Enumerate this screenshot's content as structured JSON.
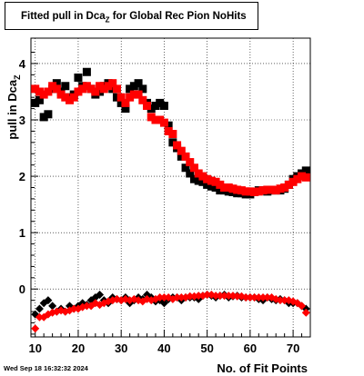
{
  "chart_data": {
    "type": "scatter",
    "title": {
      "main": "Fitted pull in Dca",
      "sub": "Z",
      "rest": " for Global Rec Pion NoHits"
    },
    "xlabel": "No. of Fit Points",
    "ylabel": {
      "main": "pull in Dca",
      "sub": "Z"
    },
    "xlim": [
      9,
      74
    ],
    "ylim": [
      -0.85,
      4.45
    ],
    "xticks": [
      10,
      20,
      30,
      40,
      50,
      60,
      70
    ],
    "yticks": [
      0,
      1,
      2,
      3,
      4
    ],
    "grid": true,
    "series": [
      {
        "color": "#000000",
        "points": [
          [
            10,
            3.3
          ],
          [
            11,
            3.35
          ],
          [
            12,
            3.05
          ],
          [
            13,
            3.1
          ],
          [
            14,
            3.55
          ],
          [
            15,
            3.65
          ],
          [
            16,
            3.5
          ],
          [
            17,
            3.6
          ],
          [
            18,
            3.4
          ],
          [
            19,
            3.45
          ],
          [
            20,
            3.75
          ],
          [
            21,
            3.6
          ],
          [
            22,
            3.85
          ],
          [
            23,
            3.55
          ],
          [
            24,
            3.45
          ],
          [
            25,
            3.5
          ],
          [
            26,
            3.6
          ],
          [
            27,
            3.65
          ],
          [
            28,
            3.55
          ],
          [
            29,
            3.4
          ],
          [
            30,
            3.3
          ],
          [
            31,
            3.2
          ],
          [
            32,
            3.55
          ],
          [
            33,
            3.6
          ],
          [
            34,
            3.65
          ],
          [
            35,
            3.55
          ],
          [
            36,
            3.3
          ],
          [
            37,
            3.2
          ],
          [
            38,
            3.25
          ],
          [
            39,
            3.3
          ],
          [
            40,
            3.25
          ],
          [
            41,
            2.9
          ],
          [
            42,
            2.6
          ],
          [
            43,
            2.5
          ],
          [
            44,
            2.35
          ],
          [
            45,
            2.15
          ],
          [
            46,
            2.05
          ],
          [
            47,
            1.95
          ],
          [
            48,
            1.92
          ],
          [
            49,
            1.9
          ],
          [
            50,
            1.85
          ],
          [
            51,
            1.82
          ],
          [
            52,
            1.8
          ],
          [
            53,
            1.75
          ],
          [
            54,
            1.75
          ],
          [
            55,
            1.73
          ],
          [
            56,
            1.72
          ],
          [
            57,
            1.7
          ],
          [
            58,
            1.7
          ],
          [
            59,
            1.68
          ],
          [
            60,
            1.68
          ],
          [
            61,
            1.72
          ],
          [
            62,
            1.75
          ],
          [
            63,
            1.75
          ],
          [
            64,
            1.73
          ],
          [
            65,
            1.75
          ],
          [
            66,
            1.75
          ],
          [
            67,
            1.75
          ],
          [
            68,
            1.78
          ],
          [
            69,
            1.85
          ],
          [
            70,
            1.95
          ],
          [
            71,
            2.0
          ],
          [
            72,
            2.05
          ],
          [
            73,
            2.1
          ],
          [
            10,
            -0.45
          ],
          [
            11,
            -0.35
          ],
          [
            12,
            -0.25
          ],
          [
            13,
            -0.2
          ],
          [
            14,
            -0.3
          ],
          [
            15,
            -0.4
          ],
          [
            16,
            -0.35
          ],
          [
            17,
            -0.4
          ],
          [
            18,
            -0.3
          ],
          [
            19,
            -0.35
          ],
          [
            20,
            -0.3
          ],
          [
            21,
            -0.25
          ],
          [
            22,
            -0.28
          ],
          [
            23,
            -0.2
          ],
          [
            24,
            -0.15
          ],
          [
            25,
            -0.1
          ],
          [
            26,
            -0.2
          ],
          [
            27,
            -0.25
          ],
          [
            28,
            -0.15
          ],
          [
            29,
            -0.18
          ],
          [
            30,
            -0.2
          ],
          [
            31,
            -0.15
          ],
          [
            32,
            -0.25
          ],
          [
            33,
            -0.2
          ],
          [
            34,
            -0.15
          ],
          [
            35,
            -0.18
          ],
          [
            36,
            -0.1
          ],
          [
            37,
            -0.15
          ],
          [
            38,
            -0.22
          ],
          [
            39,
            -0.2
          ],
          [
            40,
            -0.25
          ],
          [
            41,
            -0.18
          ],
          [
            42,
            -0.15
          ],
          [
            43,
            -0.15
          ],
          [
            44,
            -0.2
          ],
          [
            45,
            -0.15
          ],
          [
            46,
            -0.15
          ],
          [
            47,
            -0.15
          ],
          [
            48,
            -0.18
          ],
          [
            49,
            -0.12
          ],
          [
            50,
            -0.1
          ],
          [
            51,
            -0.12
          ],
          [
            52,
            -0.15
          ],
          [
            53,
            -0.12
          ],
          [
            54,
            -0.1
          ],
          [
            55,
            -0.15
          ],
          [
            56,
            -0.13
          ],
          [
            57,
            -0.12
          ],
          [
            58,
            -0.15
          ],
          [
            59,
            -0.15
          ],
          [
            60,
            -0.15
          ],
          [
            61,
            -0.15
          ],
          [
            62,
            -0.18
          ],
          [
            63,
            -0.2
          ],
          [
            64,
            -0.15
          ],
          [
            65,
            -0.18
          ],
          [
            66,
            -0.2
          ],
          [
            67,
            -0.18
          ],
          [
            68,
            -0.2
          ],
          [
            69,
            -0.25
          ],
          [
            70,
            -0.25
          ],
          [
            71,
            -0.25
          ],
          [
            72,
            -0.3
          ],
          [
            73,
            -0.35
          ]
        ]
      },
      {
        "color": "#ff0000",
        "points": [
          [
            10,
            3.55
          ],
          [
            11,
            3.5
          ],
          [
            12,
            3.45
          ],
          [
            13,
            3.5
          ],
          [
            14,
            3.6
          ],
          [
            15,
            3.55
          ],
          [
            16,
            3.45
          ],
          [
            17,
            3.4
          ],
          [
            18,
            3.35
          ],
          [
            19,
            3.4
          ],
          [
            20,
            3.5
          ],
          [
            21,
            3.55
          ],
          [
            22,
            3.6
          ],
          [
            23,
            3.55
          ],
          [
            24,
            3.5
          ],
          [
            25,
            3.6
          ],
          [
            26,
            3.55
          ],
          [
            27,
            3.6
          ],
          [
            28,
            3.65
          ],
          [
            29,
            3.55
          ],
          [
            30,
            3.4
          ],
          [
            31,
            3.3
          ],
          [
            32,
            3.4
          ],
          [
            33,
            3.45
          ],
          [
            34,
            3.45
          ],
          [
            35,
            3.35
          ],
          [
            36,
            3.25
          ],
          [
            37,
            3.05
          ],
          [
            38,
            3.0
          ],
          [
            39,
            3.0
          ],
          [
            40,
            2.95
          ],
          [
            41,
            2.8
          ],
          [
            42,
            2.75
          ],
          [
            43,
            2.55
          ],
          [
            44,
            2.45
          ],
          [
            45,
            2.35
          ],
          [
            46,
            2.25
          ],
          [
            47,
            2.15
          ],
          [
            48,
            2.05
          ],
          [
            49,
            2.0
          ],
          [
            50,
            1.95
          ],
          [
            51,
            1.92
          ],
          [
            52,
            1.9
          ],
          [
            53,
            1.85
          ],
          [
            54,
            1.8
          ],
          [
            55,
            1.8
          ],
          [
            56,
            1.78
          ],
          [
            57,
            1.76
          ],
          [
            58,
            1.75
          ],
          [
            59,
            1.73
          ],
          [
            60,
            1.73
          ],
          [
            61,
            1.72
          ],
          [
            62,
            1.73
          ],
          [
            63,
            1.75
          ],
          [
            64,
            1.76
          ],
          [
            65,
            1.76
          ],
          [
            66,
            1.75
          ],
          [
            67,
            1.78
          ],
          [
            68,
            1.8
          ],
          [
            69,
            1.85
          ],
          [
            70,
            1.9
          ],
          [
            71,
            1.95
          ],
          [
            72,
            2.0
          ],
          [
            73,
            1.98
          ],
          [
            10,
            -0.7
          ],
          [
            11,
            -0.5
          ],
          [
            12,
            -0.5
          ],
          [
            13,
            -0.45
          ],
          [
            14,
            -0.42
          ],
          [
            15,
            -0.4
          ],
          [
            16,
            -0.38
          ],
          [
            17,
            -0.4
          ],
          [
            18,
            -0.38
          ],
          [
            19,
            -0.35
          ],
          [
            20,
            -0.35
          ],
          [
            21,
            -0.32
          ],
          [
            22,
            -0.3
          ],
          [
            23,
            -0.3
          ],
          [
            24,
            -0.25
          ],
          [
            25,
            -0.28
          ],
          [
            26,
            -0.25
          ],
          [
            27,
            -0.22
          ],
          [
            28,
            -0.2
          ],
          [
            29,
            -0.18
          ],
          [
            30,
            -0.2
          ],
          [
            31,
            -0.18
          ],
          [
            32,
            -0.2
          ],
          [
            33,
            -0.18
          ],
          [
            34,
            -0.2
          ],
          [
            35,
            -0.22
          ],
          [
            36,
            -0.18
          ],
          [
            37,
            -0.2
          ],
          [
            38,
            -0.18
          ],
          [
            39,
            -0.15
          ],
          [
            40,
            -0.15
          ],
          [
            41,
            -0.15
          ],
          [
            42,
            -0.18
          ],
          [
            43,
            -0.15
          ],
          [
            44,
            -0.15
          ],
          [
            45,
            -0.15
          ],
          [
            46,
            -0.13
          ],
          [
            47,
            -0.13
          ],
          [
            48,
            -0.12
          ],
          [
            49,
            -0.12
          ],
          [
            50,
            -0.1
          ],
          [
            51,
            -0.1
          ],
          [
            52,
            -0.12
          ],
          [
            53,
            -0.12
          ],
          [
            54,
            -0.12
          ],
          [
            55,
            -0.12
          ],
          [
            56,
            -0.12
          ],
          [
            57,
            -0.13
          ],
          [
            58,
            -0.13
          ],
          [
            59,
            -0.15
          ],
          [
            60,
            -0.15
          ],
          [
            61,
            -0.15
          ],
          [
            62,
            -0.15
          ],
          [
            63,
            -0.15
          ],
          [
            64,
            -0.15
          ],
          [
            65,
            -0.15
          ],
          [
            66,
            -0.18
          ],
          [
            67,
            -0.2
          ],
          [
            68,
            -0.2
          ],
          [
            69,
            -0.2
          ],
          [
            70,
            -0.22
          ],
          [
            71,
            -0.25
          ],
          [
            72,
            -0.3
          ],
          [
            73,
            -0.42
          ]
        ]
      }
    ]
  },
  "footer": {
    "timestamp": "Wed Sep 18 16:32:32 2024"
  }
}
